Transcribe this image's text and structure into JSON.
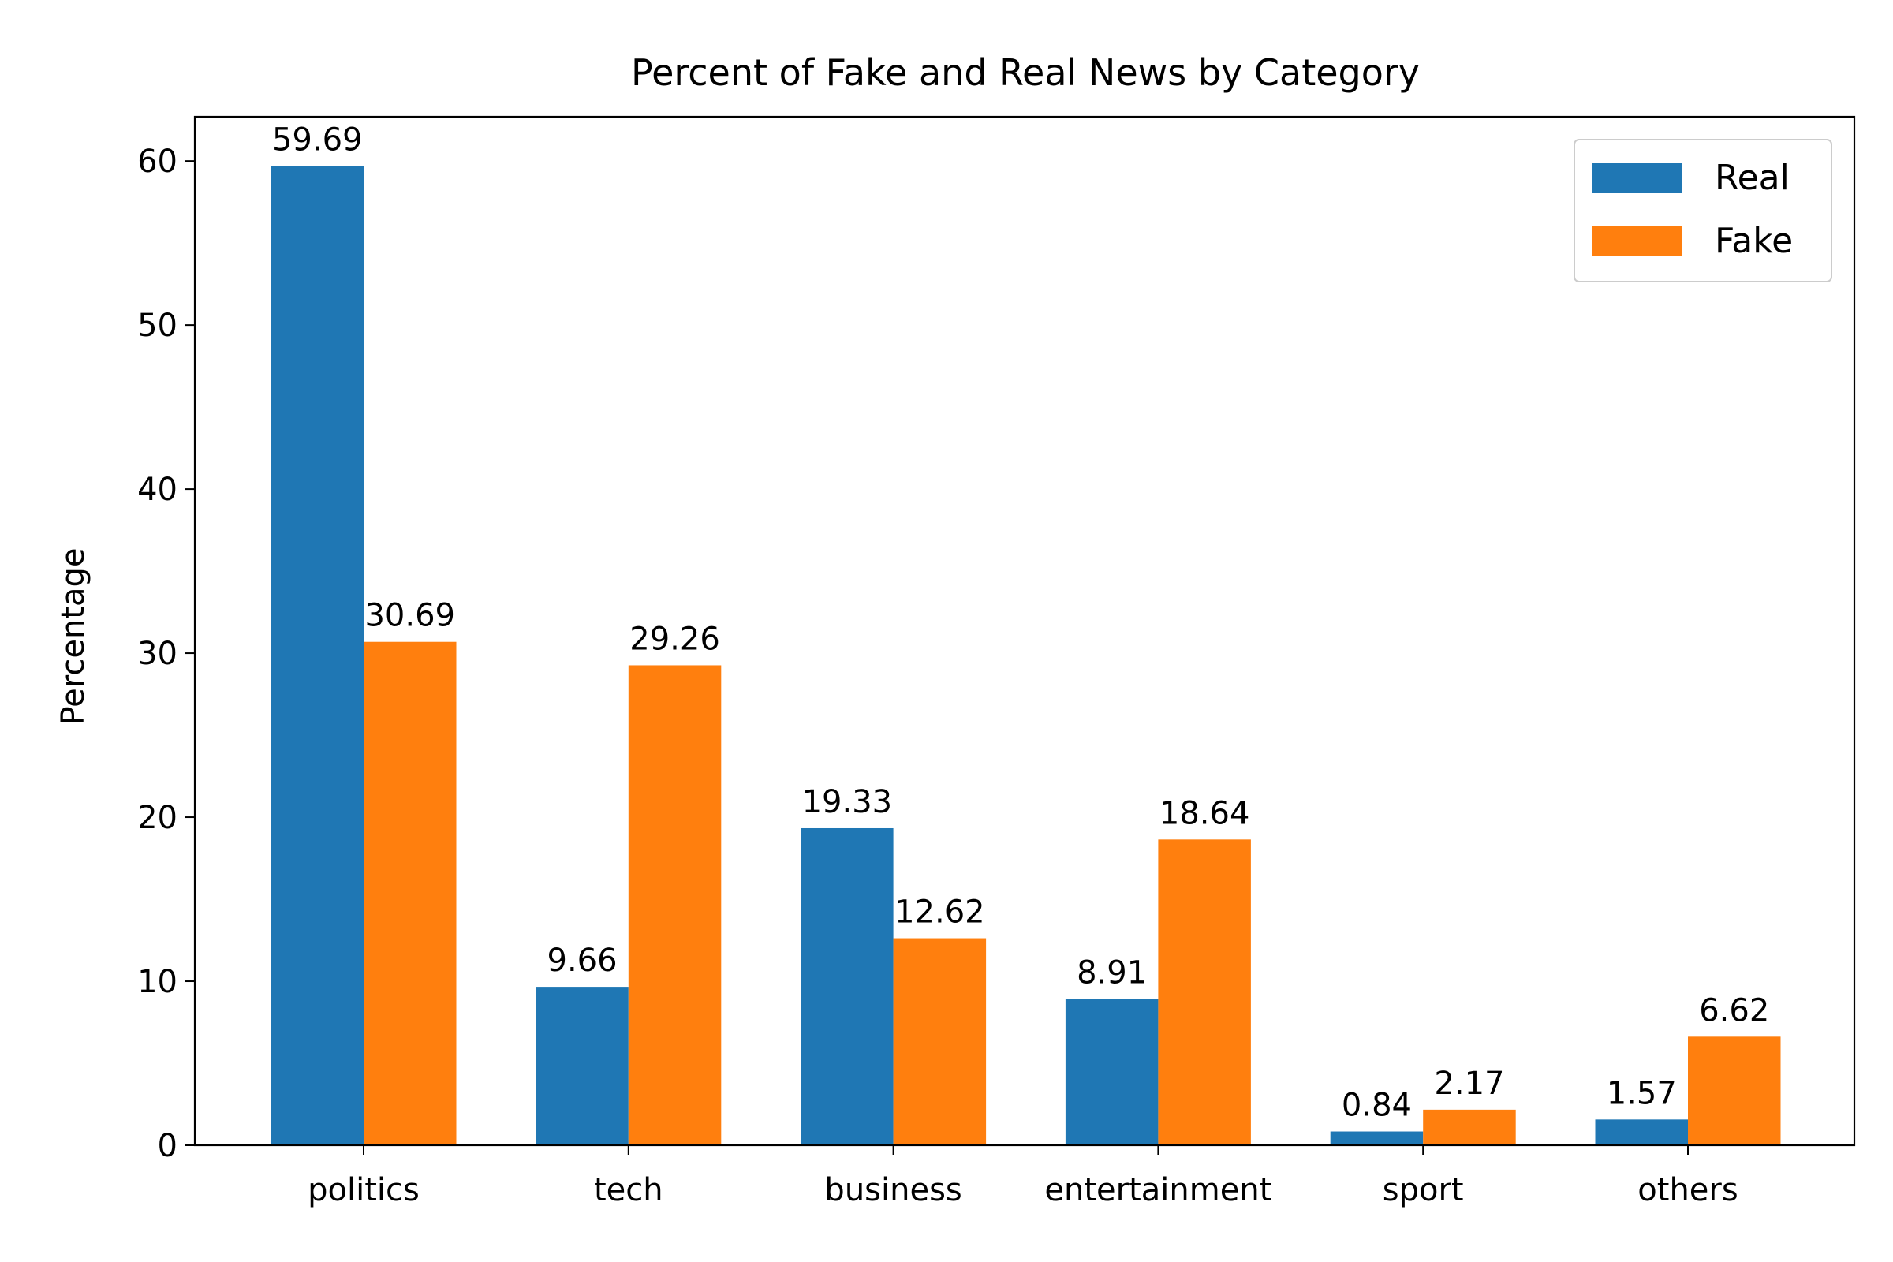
{
  "chart_data": {
    "type": "bar",
    "title": "Percent of Fake and Real News by Category",
    "xlabel": "",
    "ylabel": "Percentage",
    "categories": [
      "politics",
      "tech",
      "business",
      "entertainment",
      "sport",
      "others"
    ],
    "series": [
      {
        "name": "Real",
        "color": "#1f77b4",
        "values": [
          59.69,
          9.66,
          19.33,
          8.91,
          0.84,
          1.57
        ]
      },
      {
        "name": "Fake",
        "color": "#ff7f0e",
        "values": [
          30.69,
          29.26,
          12.62,
          18.64,
          2.17,
          6.62
        ]
      }
    ],
    "ylim": [
      0,
      62.7
    ],
    "yticks": [
      0,
      10,
      20,
      30,
      40,
      50,
      60
    ],
    "grid": false,
    "legend": "top-right",
    "data_labels": true
  }
}
